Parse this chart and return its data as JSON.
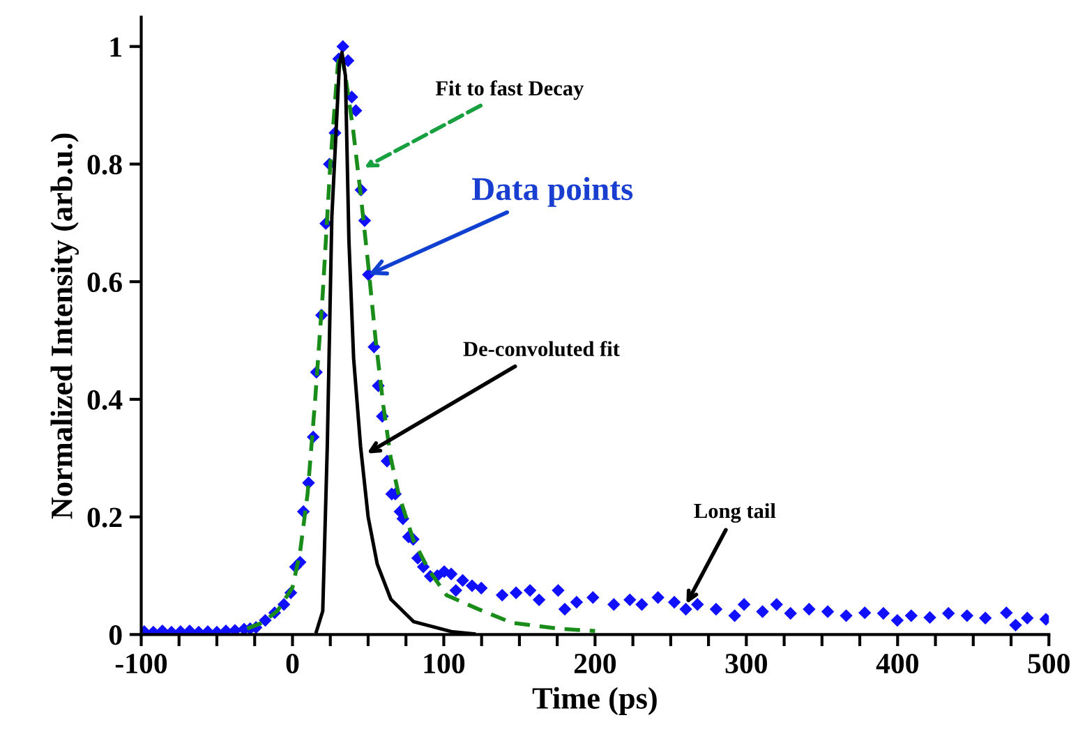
{
  "chart_data": {
    "type": "scatter",
    "xlabel": "Time (ps)",
    "ylabel": "Normalized Intensity (arb.u.)",
    "xlim": [
      -100,
      500
    ],
    "ylim": [
      0,
      1.05
    ],
    "xticks": [
      -100,
      {
        "value": -75,
        "label": null
      },
      {
        "value": -50,
        "label": null
      },
      {
        "value": -25,
        "label": null
      },
      0,
      {
        "value": 25,
        "label": null
      },
      {
        "value": 50,
        "label": null
      },
      {
        "value": 75,
        "label": null
      },
      100,
      {
        "value": 125,
        "label": null
      },
      {
        "value": 150,
        "label": null
      },
      {
        "value": 175,
        "label": null
      },
      200,
      {
        "value": 225,
        "label": null
      },
      {
        "value": 250,
        "label": null
      },
      {
        "value": 275,
        "label": null
      },
      300,
      {
        "value": 325,
        "label": null
      },
      {
        "value": 350,
        "label": null
      },
      {
        "value": 375,
        "label": null
      },
      400,
      {
        "value": 425,
        "label": null
      },
      {
        "value": 450,
        "label": null
      },
      {
        "value": 475,
        "label": null
      },
      500
    ],
    "yticks": [
      0,
      0.2,
      0.4,
      0.6,
      0.8,
      1
    ],
    "grid": false,
    "series": [
      {
        "color": "#1010ff",
        "marker": "diamond",
        "x": [
          -98,
          -92,
          -86,
          -80,
          -74,
          -68,
          -62,
          -56,
          -50,
          -44,
          -38,
          -32,
          -28,
          -24.1,
          -18,
          -11.8,
          -5.7,
          -1.1,
          2,
          5,
          7.2,
          10.6,
          13.7,
          15.8,
          19.2,
          22,
          24.4,
          28.1,
          30.6,
          33.3,
          36.7,
          39.2,
          41.9,
          45.3,
          47.7,
          50.2,
          53.9,
          56.7,
          59.4,
          62.5,
          65.6,
          68,
          71.1,
          73,
          76.7,
          79.8,
          82.8,
          86.5,
          91.1,
          95.7,
          100.3,
          104.9,
          108,
          112.5,
          118.7,
          124.8,
          138.6,
          147.8,
          157,
          163,
          175.6,
          180,
          187.8,
          198.6,
          212.4,
          223,
          230.9,
          241.6,
          252.4,
          260,
          267.7,
          280,
          292.3,
          298.5,
          310.7,
          320,
          329.2,
          341.5,
          353.8,
          366,
          378.3,
          390.6,
          399.8,
          409,
          421.3,
          433.6,
          445.9,
          458,
          471.9,
          478,
          485.7,
          498
        ],
        "values": [
          0.005,
          0.004,
          0.006,
          0.004,
          0.005,
          0.006,
          0.004,
          0.005,
          0.004,
          0.006,
          0.007,
          0.009,
          0.01,
          0.012,
          0.024,
          0.037,
          0.051,
          0.071,
          0.115,
          0.123,
          0.209,
          0.258,
          0.336,
          0.446,
          0.543,
          0.699,
          0.8,
          0.853,
          0.979,
          1.0,
          0.976,
          0.914,
          0.891,
          0.756,
          0.704,
          0.612,
          0.489,
          0.423,
          0.371,
          0.295,
          0.239,
          0.239,
          0.209,
          0.197,
          0.166,
          0.162,
          0.13,
          0.115,
          0.099,
          0.1,
          0.107,
          0.103,
          0.075,
          0.092,
          0.083,
          0.079,
          0.067,
          0.071,
          0.075,
          0.059,
          0.075,
          0.043,
          0.055,
          0.063,
          0.051,
          0.059,
          0.051,
          0.063,
          0.055,
          0.043,
          0.051,
          0.043,
          0.032,
          0.051,
          0.039,
          0.051,
          0.036,
          0.043,
          0.039,
          0.032,
          0.037,
          0.036,
          0.024,
          0.032,
          0.029,
          0.036,
          0.032,
          0.028,
          0.037,
          0.016,
          0.028,
          0.026
        ]
      },
      {
        "type": "line",
        "color": "#1a8c1a",
        "line_style": "dashed",
        "x": [
          -30,
          -20,
          -10,
          0,
          5,
          10,
          15,
          20,
          25,
          30,
          32,
          35,
          40,
          45,
          50,
          55,
          60,
          65,
          70,
          80,
          90,
          101.8,
          123,
          145,
          175.6,
          200
        ],
        "values": [
          0.01,
          0.02,
          0.04,
          0.08,
          0.14,
          0.24,
          0.4,
          0.58,
          0.8,
          0.97,
          0.99,
          0.95,
          0.86,
          0.75,
          0.63,
          0.5,
          0.39,
          0.3,
          0.24,
          0.16,
          0.11,
          0.067,
          0.043,
          0.02,
          0.01,
          0.006
        ]
      },
      {
        "type": "line",
        "color": "#000000",
        "line_style": "solid",
        "x": [
          15.8,
          20,
          23,
          26,
          31,
          32.7,
          35,
          37.3,
          40.4,
          45,
          50,
          56,
          65,
          80,
          105,
          120
        ],
        "values": [
          0.005,
          0.04,
          0.32,
          0.71,
          0.97,
          0.99,
          0.95,
          0.67,
          0.47,
          0.32,
          0.2,
          0.12,
          0.06,
          0.022,
          0.005,
          0.001
        ]
      }
    ],
    "annotations": [
      {
        "text": "Fit to fast Decay",
        "x": 47.5,
        "y": 0.794
      },
      {
        "text": "Data points",
        "x": 50.2,
        "y": 0.612
      },
      {
        "text": "De-convoluted fit",
        "x": 49.3,
        "y": 0.308
      },
      {
        "text": "Long tail",
        "x": 260.4,
        "y": 0.052
      }
    ]
  }
}
